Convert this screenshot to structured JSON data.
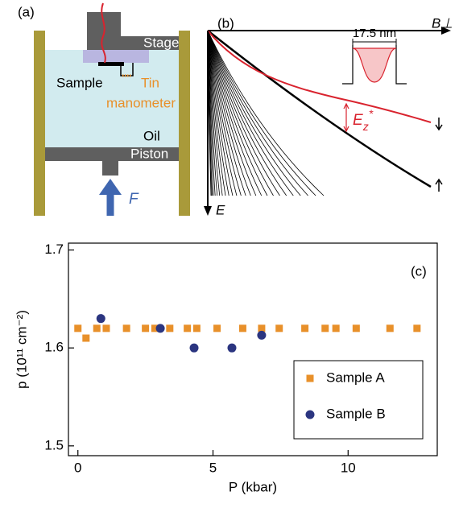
{
  "panel_a": {
    "label": "(a)",
    "stage": "Stage",
    "sample": "Sample",
    "tin": "Tin",
    "manometer": "manometer",
    "oil": "Oil",
    "piston": "Piston",
    "force": "F"
  },
  "panel_b": {
    "label": "(b)",
    "x_axis": "B⊥",
    "y_axis": "E",
    "width": "17.5 nm",
    "gap": "E",
    "gap_sub": "z",
    "gap_sup": "*"
  },
  "chart_data": {
    "type": "scatter",
    "label": "(c)",
    "x_label": "P (kbar)",
    "y_label": "p (10¹¹ cm⁻²)",
    "xlim": [
      -0.35,
      13.3
    ],
    "ylim": [
      1.49,
      1.707
    ],
    "xticks": [
      0,
      5,
      10
    ],
    "yticks": [
      1.5,
      1.6,
      1.7
    ],
    "legend": "lower right",
    "series": [
      {
        "name": "Sample A",
        "color": "#e8902a",
        "marker": "square",
        "x": [
          0,
          0.3,
          0.7,
          1.05,
          1.8,
          2.5,
          2.85,
          3.4,
          4.05,
          4.4,
          5.15,
          6.1,
          6.8,
          7.45,
          8.4,
          9.15,
          9.55,
          10.3,
          11.55,
          12.55
        ],
        "values": [
          1.62,
          1.61,
          1.62,
          1.62,
          1.62,
          1.62,
          1.62,
          1.62,
          1.62,
          1.62,
          1.62,
          1.62,
          1.62,
          1.62,
          1.62,
          1.62,
          1.62,
          1.62,
          1.62,
          1.62
        ]
      },
      {
        "name": "Sample B",
        "color": "#2b3580",
        "marker": "circle",
        "x": [
          0.85,
          3.05,
          4.3,
          5.7,
          6.8
        ],
        "values": [
          1.63,
          1.62,
          1.6,
          1.6,
          1.613
        ]
      }
    ]
  }
}
